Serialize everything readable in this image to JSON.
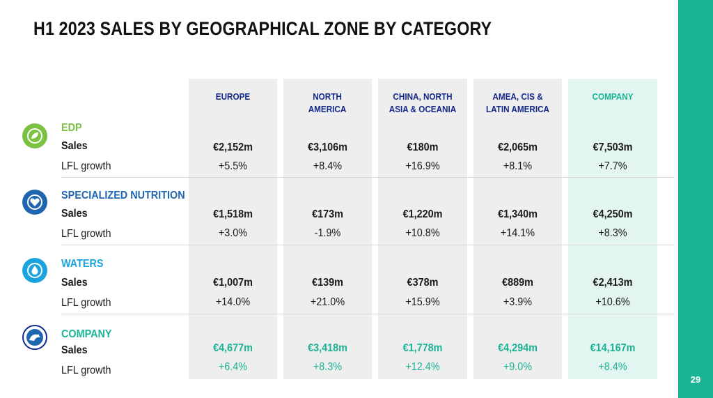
{
  "title": "H1 2023 SALES BY GEOGRAPHICAL ZONE BY CATEGORY",
  "page_number": "29",
  "colors": {
    "accent_green": "#1ab394",
    "navy": "#13288a",
    "edp_green": "#7cc242",
    "nutrition_blue": "#1f66b0",
    "waters_blue": "#1aa3dc"
  },
  "columns": [
    {
      "label": "EUROPE"
    },
    {
      "label": "NORTH AMERICA"
    },
    {
      "label": "CHINA, NORTH ASIA & OCEANIA"
    },
    {
      "label": "AMEA, CIS & LATIN AMERICA"
    },
    {
      "label": "COMPANY"
    }
  ],
  "row_labels": {
    "sales": "Sales",
    "lfl": "LFL growth"
  },
  "categories": [
    {
      "name": "EDP",
      "icon": "leaf-icon",
      "sales": [
        "€2,152m",
        "€3,106m",
        "€180m",
        "€2,065m",
        "€7,503m"
      ],
      "lfl": [
        "+5.5%",
        "+8.4%",
        "+16.9%",
        "+8.1%",
        "+7.7%"
      ]
    },
    {
      "name": "SPECIALIZED NUTRITION",
      "icon": "heart-hands-icon",
      "sales": [
        "€1,518m",
        "€173m",
        "€1,220m",
        "€1,340m",
        "€4,250m"
      ],
      "lfl": [
        "+3.0%",
        "-1.9%",
        "+10.8%",
        "+14.1%",
        "+8.3%"
      ]
    },
    {
      "name": "WATERS",
      "icon": "water-drop-icon",
      "sales": [
        "€1,007m",
        "€139m",
        "€378m",
        "€889m",
        "€2,413m"
      ],
      "lfl": [
        "+14.0%",
        "+21.0%",
        "+15.9%",
        "+3.9%",
        "+10.6%"
      ]
    },
    {
      "name": "COMPANY",
      "icon": "company-logo-icon",
      "sales": [
        "€4,677m",
        "€3,418m",
        "€1,778m",
        "€4,294m",
        "€14,167m"
      ],
      "lfl": [
        "+6.4%",
        "+8.3%",
        "+12.4%",
        "+9.0%",
        "+8.4%"
      ]
    }
  ]
}
